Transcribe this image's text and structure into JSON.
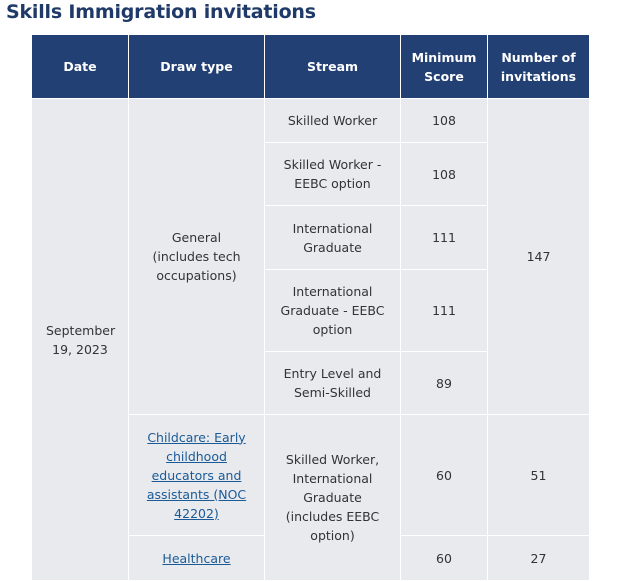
{
  "header": {
    "title": "Skills Immigration invitations"
  },
  "table": {
    "columns": [
      "Date",
      "Draw type",
      "Stream",
      "Minimum Score",
      "Number of invitations"
    ],
    "date": "September 19, 2023",
    "general": {
      "draw_type": "General (includes tech occupations)",
      "invitations": 147,
      "streams": [
        {
          "stream": "Skilled Worker",
          "score": 108
        },
        {
          "stream": "Skilled Worker - EEBC option",
          "score": 108
        },
        {
          "stream": "International Graduate",
          "score": 111
        },
        {
          "stream": "International Graduate - EEBC option",
          "score": 111
        },
        {
          "stream": "Entry Level and Semi-Skilled",
          "score": 89
        }
      ]
    },
    "targeted": {
      "stream": "Skilled Worker, International Graduate (includes EEBC option)",
      "draws": [
        {
          "draw_type": "Childcare: Early childhood educators and assistants (NOC 42202)",
          "score": 60,
          "invitations": 51
        },
        {
          "draw_type": "Healthcare",
          "score": 60,
          "invitations": 27
        }
      ]
    }
  }
}
